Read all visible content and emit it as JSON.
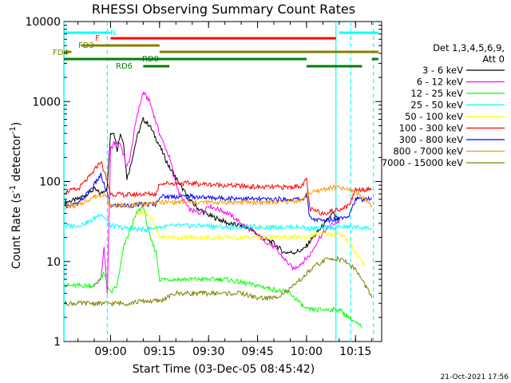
{
  "chart_data": {
    "type": "line",
    "title": "RHESSI Observing Summary Count Rates",
    "xlabel": "Start Time (03-Dec-05 08:45:42)",
    "ylabel": "Count Rate (s",
    "ylabel_sup": "-1",
    "ylabel_tail": " detector",
    "ylabel_close": ")",
    "y_scale": "log",
    "ylim": [
      1,
      10000
    ],
    "xlim": [
      "08:45:42",
      "10:23:00"
    ],
    "x_ticks": [
      "09:00",
      "09:15",
      "09:30",
      "09:45",
      "10:00",
      "10:15"
    ],
    "y_ticks": [
      "1",
      "10",
      "100",
      "1000",
      "10000"
    ],
    "legend_position": "right",
    "legend_header": [
      "Det 1,3,4,5,6,9,",
      "Att 0"
    ],
    "timestamp": "21-Oct-2021 17:56",
    "series": [
      {
        "name": "3 - 6 keV",
        "color": "#000000",
        "points": [
          [
            "08:46",
            55
          ],
          [
            "08:50",
            60
          ],
          [
            "08:55",
            80
          ],
          [
            "08:57",
            70
          ],
          [
            "08:59",
            85
          ],
          [
            "09:00",
            400
          ],
          [
            "09:01",
            420
          ],
          [
            "09:02",
            250
          ],
          [
            "09:03",
            400
          ],
          [
            "09:04",
            300
          ],
          [
            "09:05",
            110
          ],
          [
            "09:06",
            150
          ],
          [
            "09:08",
            350
          ],
          [
            "09:10",
            600
          ],
          [
            "09:12",
            500
          ],
          [
            "09:15",
            280
          ],
          [
            "09:18",
            150
          ],
          [
            "09:21",
            95
          ],
          [
            "09:24",
            60
          ],
          [
            "09:27",
            45
          ],
          [
            "09:30",
            38
          ],
          [
            "09:33",
            34
          ],
          [
            "09:36",
            30
          ],
          [
            "09:40",
            28
          ],
          [
            "09:43",
            25
          ],
          [
            "09:46",
            20
          ],
          [
            "09:50",
            17
          ],
          [
            "09:53",
            13
          ],
          [
            "09:56",
            13
          ],
          [
            "09:59",
            14
          ],
          [
            "10:02",
            20
          ],
          [
            "10:05",
            28
          ],
          [
            "10:08",
            40
          ],
          [
            "10:10",
            32
          ]
        ]
      },
      {
        "name": "6 - 12 keV",
        "color": "#ff00ff",
        "points": [
          [
            "08:55",
            5
          ],
          [
            "08:57",
            6
          ],
          [
            "08:58",
            15
          ],
          [
            "08:59",
            4
          ],
          [
            "09:00",
            250
          ],
          [
            "09:01",
            300
          ],
          [
            "09:03",
            300
          ],
          [
            "09:05",
            150
          ],
          [
            "09:06",
            200
          ],
          [
            "09:08",
            650
          ],
          [
            "09:10",
            1300
          ],
          [
            "09:12",
            1000
          ],
          [
            "09:15",
            400
          ],
          [
            "09:18",
            200
          ],
          [
            "09:21",
            70
          ],
          [
            "09:24",
            45
          ],
          [
            "09:27",
            40
          ],
          [
            "09:30",
            50
          ],
          [
            "09:33",
            45
          ],
          [
            "09:36",
            40
          ],
          [
            "09:40",
            30
          ],
          [
            "09:43",
            25
          ],
          [
            "09:46",
            20
          ],
          [
            "09:50",
            15
          ],
          [
            "09:53",
            11
          ],
          [
            "09:56",
            8
          ],
          [
            "09:59",
            10
          ],
          [
            "10:01",
            12
          ],
          [
            "10:04",
            20
          ],
          [
            "10:07",
            28
          ],
          [
            "10:10",
            32
          ]
        ]
      },
      {
        "name": "12 - 25 keV",
        "color": "#00ff00",
        "points": [
          [
            "08:46",
            5
          ],
          [
            "08:50",
            5
          ],
          [
            "08:55",
            5
          ],
          [
            "08:58",
            7
          ],
          [
            "09:00",
            4
          ],
          [
            "09:02",
            5
          ],
          [
            "09:04",
            15
          ],
          [
            "09:06",
            25
          ],
          [
            "09:08",
            40
          ],
          [
            "09:10",
            50
          ],
          [
            "09:12",
            20
          ],
          [
            "09:14",
            13
          ],
          [
            "09:15",
            6
          ],
          [
            "09:25",
            6
          ],
          [
            "09:35",
            6
          ],
          [
            "09:45",
            5
          ],
          [
            "09:55",
            4
          ],
          [
            "10:00",
            2.5
          ],
          [
            "10:05",
            2.5
          ],
          [
            "10:10",
            2.5
          ],
          [
            "10:13",
            2
          ],
          [
            "10:17",
            1.5
          ]
        ]
      },
      {
        "name": "25 - 50 keV",
        "color": "#00ffff",
        "points": [
          [
            "08:46",
            28
          ],
          [
            "08:50",
            28
          ],
          [
            "08:54",
            32
          ],
          [
            "08:57",
            40
          ],
          [
            "08:59",
            32
          ],
          [
            "09:00",
            28
          ],
          [
            "09:05",
            26
          ],
          [
            "09:10",
            25
          ],
          [
            "09:15",
            27
          ],
          [
            "09:20",
            28
          ],
          [
            "09:25",
            28
          ],
          [
            "09:30",
            28
          ],
          [
            "09:35",
            27
          ],
          [
            "09:40",
            27
          ],
          [
            "09:45",
            27
          ],
          [
            "09:50",
            27
          ],
          [
            "09:55",
            27
          ],
          [
            "09:59",
            27
          ],
          [
            "10:00",
            26
          ],
          [
            "10:05",
            26
          ],
          [
            "10:10",
            27
          ],
          [
            "10:15",
            27
          ],
          [
            "10:20",
            26
          ]
        ]
      },
      {
        "name": "50 - 100 keV",
        "color": "#ffff00",
        "points": [
          [
            "09:08",
            40
          ],
          [
            "09:10",
            42
          ],
          [
            "09:12",
            38
          ],
          [
            "09:14",
            25
          ],
          [
            "09:15",
            20
          ],
          [
            "10:00",
            20
          ],
          [
            "10:03",
            22
          ],
          [
            "10:06",
            22
          ],
          [
            "10:10",
            22
          ],
          [
            "10:13",
            18
          ],
          [
            "10:15",
            13
          ],
          [
            "10:18",
            9
          ]
        ]
      },
      {
        "name": "100 - 300 keV",
        "color": "#ff0000",
        "points": [
          [
            "08:46",
            75
          ],
          [
            "08:50",
            80
          ],
          [
            "08:54",
            120
          ],
          [
            "08:57",
            180
          ],
          [
            "08:59",
            100
          ],
          [
            "09:00",
            70
          ],
          [
            "09:05",
            68
          ],
          [
            "09:10",
            70
          ],
          [
            "09:14",
            70
          ],
          [
            "09:15",
            95
          ],
          [
            "09:20",
            95
          ],
          [
            "09:25",
            95
          ],
          [
            "09:30",
            92
          ],
          [
            "09:35",
            90
          ],
          [
            "09:40",
            88
          ],
          [
            "09:45",
            85
          ],
          [
            "09:50",
            85
          ],
          [
            "09:55",
            85
          ],
          [
            "09:59",
            90
          ],
          [
            "10:00",
            110
          ],
          [
            "10:01",
            45
          ],
          [
            "10:05",
            40
          ],
          [
            "10:10",
            45
          ],
          [
            "10:13",
            50
          ],
          [
            "10:15",
            80
          ],
          [
            "10:20",
            80
          ]
        ]
      },
      {
        "name": "300 - 800 keV",
        "color": "#0000ff",
        "points": [
          [
            "08:46",
            50
          ],
          [
            "08:50",
            52
          ],
          [
            "08:54",
            80
          ],
          [
            "08:57",
            120
          ],
          [
            "08:59",
            70
          ],
          [
            "09:00",
            50
          ],
          [
            "09:05",
            50
          ],
          [
            "09:10",
            52
          ],
          [
            "09:14",
            52
          ],
          [
            "09:15",
            65
          ],
          [
            "09:20",
            65
          ],
          [
            "09:25",
            65
          ],
          [
            "09:30",
            63
          ],
          [
            "09:35",
            62
          ],
          [
            "09:40",
            62
          ],
          [
            "09:45",
            60
          ],
          [
            "09:50",
            60
          ],
          [
            "09:55",
            60
          ],
          [
            "09:59",
            60
          ],
          [
            "10:00",
            70
          ],
          [
            "10:01",
            35
          ],
          [
            "10:05",
            32
          ],
          [
            "10:10",
            35
          ],
          [
            "10:13",
            38
          ],
          [
            "10:15",
            60
          ],
          [
            "10:20",
            60
          ]
        ]
      },
      {
        "name": "800 - 7000 keV",
        "color": "#ff9900",
        "points": [
          [
            "08:46",
            48
          ],
          [
            "08:50",
            50
          ],
          [
            "08:55",
            65
          ],
          [
            "08:58",
            70
          ],
          [
            "09:00",
            50
          ],
          [
            "09:05",
            50
          ],
          [
            "09:10",
            52
          ],
          [
            "09:15",
            55
          ],
          [
            "09:20",
            55
          ],
          [
            "09:25",
            55
          ],
          [
            "09:30",
            55
          ],
          [
            "09:35",
            55
          ],
          [
            "09:40",
            55
          ],
          [
            "09:45",
            55
          ],
          [
            "09:50",
            55
          ],
          [
            "09:55",
            56
          ],
          [
            "09:59",
            60
          ],
          [
            "10:00",
            70
          ],
          [
            "10:03",
            75
          ],
          [
            "10:06",
            82
          ],
          [
            "10:09",
            85
          ],
          [
            "10:12",
            80
          ],
          [
            "10:15",
            75
          ],
          [
            "10:18",
            60
          ],
          [
            "10:20",
            50
          ]
        ]
      },
      {
        "name": "7000 - 15000 keV",
        "color": "#808000",
        "points": [
          [
            "08:46",
            3
          ],
          [
            "08:50",
            3
          ],
          [
            "08:55",
            3
          ],
          [
            "09:00",
            3
          ],
          [
            "09:05",
            3
          ],
          [
            "09:10",
            3.2
          ],
          [
            "09:15",
            3.2
          ],
          [
            "09:20",
            4
          ],
          [
            "09:25",
            4
          ],
          [
            "09:30",
            4
          ],
          [
            "09:35",
            4
          ],
          [
            "09:40",
            4
          ],
          [
            "09:45",
            3.5
          ],
          [
            "09:50",
            3.5
          ],
          [
            "09:55",
            4.5
          ],
          [
            "10:00",
            7
          ],
          [
            "10:03",
            9
          ],
          [
            "10:06",
            10.5
          ],
          [
            "10:09",
            11
          ],
          [
            "10:12",
            10
          ],
          [
            "10:15",
            8
          ],
          [
            "10:18",
            5
          ],
          [
            "10:20",
            3.5
          ]
        ]
      }
    ],
    "vertical_lines": [
      {
        "time": "08:45:45",
        "style": "solid",
        "color": "#00ffff"
      },
      {
        "time": "08:59:00",
        "style": "dashed",
        "color": "#00ffff"
      },
      {
        "time": "10:09:00",
        "style": "solid",
        "color": "#00ffff"
      },
      {
        "time": "10:13:30",
        "style": "dashed",
        "color": "#00ffff"
      },
      {
        "time": "10:20:30",
        "style": "dashed",
        "color": "#00ffff"
      }
    ],
    "state_bars": [
      {
        "label": "N",
        "color": "#00ffff",
        "segments": [
          [
            "08:45:42",
            "09:00"
          ],
          [
            "10:10",
            "10:22"
          ]
        ],
        "level": "N"
      },
      {
        "label": "F",
        "color": "#ff0000",
        "segments": [
          [
            "09:00",
            "10:09"
          ]
        ],
        "level": "F"
      },
      {
        "label": "FD3",
        "color": "#808000",
        "segments": [
          [
            "08:51",
            "09:15"
          ]
        ],
        "level": "FD3"
      },
      {
        "label": "FD4",
        "color": "#808000",
        "segments": [
          [
            "08:45:42",
            "08:48"
          ],
          [
            "09:15",
            "10:22"
          ]
        ],
        "level": "FD4"
      },
      {
        "label": "RD0",
        "color": "#008000",
        "segments": [
          [
            "08:45:42",
            "10:00"
          ],
          [
            "10:20",
            "10:22"
          ]
        ],
        "level": "RD0"
      },
      {
        "label": "RD6",
        "color": "#008000",
        "segments": [
          [
            "09:10",
            "09:18"
          ],
          [
            "10:00",
            "10:17"
          ]
        ],
        "level": "RD6"
      }
    ]
  }
}
